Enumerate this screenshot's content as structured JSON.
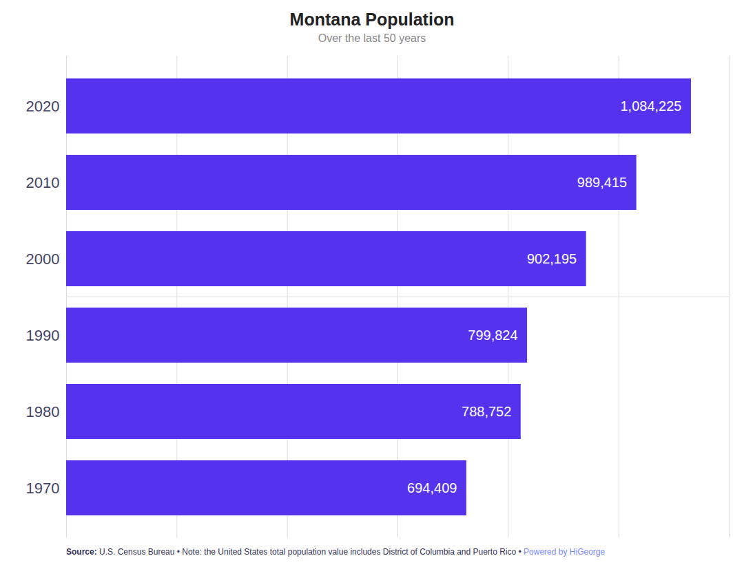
{
  "chart_data": {
    "type": "bar",
    "orientation": "horizontal",
    "title": "Montana Population",
    "subtitle": "Over the last 50 years",
    "categories": [
      "2020",
      "2010",
      "2000",
      "1990",
      "1980",
      "1970"
    ],
    "values": [
      1084225,
      989415,
      902195,
      799824,
      788752,
      694409
    ],
    "value_labels": [
      "1,084,225",
      "989,415",
      "902,195",
      "799,824",
      "788,752",
      "694,409"
    ],
    "data_labels": true,
    "color": "#5533ee",
    "xlim": [
      0,
      1150000
    ],
    "xticks": [
      0,
      191666.66666666666,
      383333.3333333333,
      575000,
      766666.6666666666,
      958333.3333333334,
      1150000
    ],
    "grid": true,
    "tick_labels": "y",
    "annotations": [
      "Source:",
      " U.S. Census Bureau • Note: the United States total population value includes District of Columbia and Puerto Rico • ",
      "Powered by HiGeorge"
    ]
  }
}
